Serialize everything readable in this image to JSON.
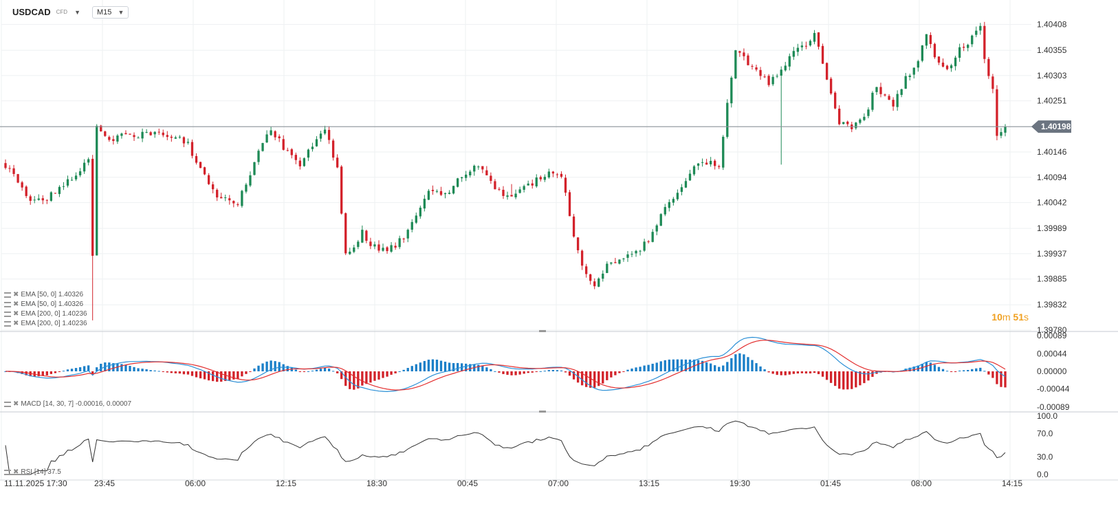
{
  "header": {
    "symbol": "USDCAD",
    "instrument_type": "CFD",
    "timeframe": "M15"
  },
  "legend": {
    "main": [
      "EMA [50, 0] 1.40326",
      "EMA [50, 0] 1.40326",
      "EMA [200, 0] 1.40236",
      "EMA [200, 0] 1.40236"
    ],
    "macd": "MACD [14, 30, 7] -0.00016,  0.00007",
    "rsi": "RSI [14] 37.5"
  },
  "countdown": {
    "minutes": "10",
    "minutes_unit": "m",
    "seconds": "51",
    "seconds_unit": "s"
  },
  "colors": {
    "up": "#1e8a56",
    "down": "#d3222b",
    "macd_line": "#2a8fd6",
    "signal_line": "#e32e2e",
    "hist_pos": "#1a7fc8",
    "hist_neg": "#d2232a",
    "grid": "#eef0f2",
    "price_line": "#8a9198",
    "rsi_line": "#333333",
    "countdown": "#f0a020"
  },
  "chart_data": [
    {
      "type": "candlestick",
      "title": "USDCAD CFD M15",
      "y_ticks": [
        "1.40408",
        "1.40355",
        "1.40303",
        "1.40251",
        "1.40146",
        "1.40094",
        "1.40042",
        "1.39989",
        "1.39937",
        "1.39885",
        "1.39832",
        "1.39780"
      ],
      "ylim": [
        1.3978,
        1.4043
      ],
      "current_price": 1.40198,
      "current_price_label": "1.40198",
      "x_labels": [
        "11.11.2025  17:30",
        "23:45",
        "06:00",
        "12:15",
        "18:30",
        "00:45",
        "07:00",
        "13:15",
        "19:30",
        "01:45",
        "08:00",
        "14:15"
      ],
      "n_bars": 242,
      "anchors": [
        [
          0,
          1.4012
        ],
        [
          6,
          1.4004
        ],
        [
          12,
          1.4006
        ],
        [
          17,
          1.401
        ],
        [
          20,
          1.4013
        ],
        [
          21,
          1.3994
        ],
        [
          22,
          1.402
        ],
        [
          25,
          1.4017
        ],
        [
          30,
          1.4018
        ],
        [
          37,
          1.4019
        ],
        [
          40,
          1.4018
        ],
        [
          44,
          1.4016
        ],
        [
          49,
          1.4008
        ],
        [
          52,
          1.4005
        ],
        [
          56,
          1.4004
        ],
        [
          60,
          1.4012
        ],
        [
          63,
          1.4019
        ],
        [
          66,
          1.4017
        ],
        [
          71,
          1.4011
        ],
        [
          73,
          1.4015
        ],
        [
          77,
          1.4019
        ],
        [
          80,
          1.4011
        ],
        [
          82,
          1.3993
        ],
        [
          86,
          1.3998
        ],
        [
          90,
          1.3994
        ],
        [
          93,
          1.3995
        ],
        [
          97,
          1.3998
        ],
        [
          102,
          1.4007
        ],
        [
          106,
          1.4006
        ],
        [
          110,
          1.401
        ],
        [
          114,
          1.4012
        ],
        [
          117,
          1.4008
        ],
        [
          121,
          1.4005
        ],
        [
          126,
          1.4008
        ],
        [
          131,
          1.401
        ],
        [
          134,
          1.401
        ],
        [
          137,
          1.3998
        ],
        [
          140,
          1.3989
        ],
        [
          142,
          1.3987
        ],
        [
          145,
          1.3991
        ],
        [
          150,
          1.3993
        ],
        [
          155,
          1.3996
        ],
        [
          159,
          1.4003
        ],
        [
          163,
          1.4008
        ],
        [
          168,
          1.4013
        ],
        [
          172,
          1.4012
        ],
        [
          174,
          1.4025
        ],
        [
          176,
          1.4036
        ],
        [
          180,
          1.4032
        ],
        [
          184,
          1.4029
        ],
        [
          187,
          1.4031
        ],
        [
          189,
          1.4034
        ],
        [
          192,
          1.4036
        ],
        [
          195,
          1.4039
        ],
        [
          198,
          1.403
        ],
        [
          201,
          1.4021
        ],
        [
          204,
          1.402
        ],
        [
          207,
          1.4022
        ],
        [
          210,
          1.4028
        ],
        [
          214,
          1.4024
        ],
        [
          217,
          1.403
        ],
        [
          220,
          1.4033
        ],
        [
          222,
          1.4039
        ],
        [
          224,
          1.4034
        ],
        [
          227,
          1.4031
        ],
        [
          230,
          1.4036
        ],
        [
          233,
          1.4038
        ],
        [
          235,
          1.404
        ],
        [
          236,
          1.4034
        ],
        [
          238,
          1.4027
        ],
        [
          239,
          1.4018
        ],
        [
          241,
          1.402
        ]
      ]
    },
    {
      "type": "macd",
      "params": [
        14,
        30,
        7
      ],
      "macd_value": -0.00016,
      "signal_value": 7e-05,
      "y_ticks": [
        "0.00089",
        "0.00044",
        "0.00000",
        "-0.00044",
        "-0.00089"
      ],
      "ylim": [
        -0.00089,
        0.00089
      ]
    },
    {
      "type": "line",
      "name": "RSI",
      "period": 14,
      "last_value": 37.5,
      "y_ticks": [
        "100.0",
        "70.0",
        "30.0",
        "0.0"
      ],
      "ylim": [
        0,
        100
      ]
    }
  ]
}
